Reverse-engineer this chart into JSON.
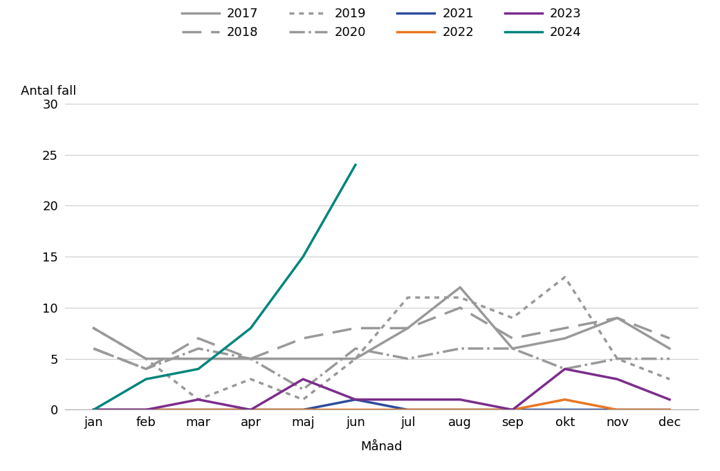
{
  "months": [
    "jan",
    "feb",
    "mar",
    "apr",
    "maj",
    "jun",
    "jul",
    "aug",
    "sep",
    "okt",
    "nov",
    "dec"
  ],
  "series": {
    "2017": {
      "values": [
        8,
        5,
        5,
        5,
        5,
        5,
        8,
        12,
        6,
        7,
        9,
        6
      ],
      "color": "#999999",
      "linestyle": "-",
      "linewidth": 2.5
    },
    "2018": {
      "values": [
        6,
        4,
        7,
        5,
        7,
        8,
        8,
        10,
        7,
        8,
        9,
        7
      ],
      "color": "#999999",
      "linestyle": "--",
      "linewidth": 2.5
    },
    "2019": {
      "values": [
        8,
        5,
        1,
        3,
        1,
        5,
        11,
        11,
        9,
        13,
        5,
        3
      ],
      "color": "#999999",
      "linestyle": ":",
      "linewidth": 2.5
    },
    "2020": {
      "values": [
        6,
        4,
        6,
        5,
        2,
        6,
        5,
        6,
        6,
        4,
        5,
        5
      ],
      "color": "#999999",
      "linestyle": "-.",
      "linewidth": 2.5
    },
    "2021": {
      "values": [
        0,
        0,
        0,
        0,
        0,
        1,
        0,
        0,
        0,
        0,
        0,
        0
      ],
      "color": "#2E4D9E",
      "linestyle": "-",
      "linewidth": 2.5
    },
    "2022": {
      "values": [
        0,
        0,
        0,
        0,
        0,
        0,
        0,
        0,
        0,
        1,
        0,
        0
      ],
      "color": "#E87722",
      "linestyle": "-",
      "linewidth": 2.5
    },
    "2023": {
      "values": [
        0,
        0,
        1,
        0,
        3,
        1,
        1,
        1,
        0,
        4,
        3,
        1
      ],
      "color": "#7B2D8B",
      "linestyle": "-",
      "linewidth": 2.5
    },
    "2024": {
      "values": [
        0,
        3,
        4,
        8,
        15,
        24,
        null,
        null,
        null,
        null,
        null,
        null
      ],
      "color": "#00857C",
      "linestyle": "-",
      "linewidth": 2.5
    }
  },
  "ylabel": "Antal fall",
  "xlabel": "Månad",
  "ylim": [
    0,
    30
  ],
  "yticks": [
    0,
    5,
    10,
    15,
    20,
    25,
    30
  ],
  "background_color": "#ffffff",
  "grid_color": "#cccccc",
  "legend_order": [
    "2017",
    "2018",
    "2019",
    "2020",
    "2021",
    "2022",
    "2023",
    "2024"
  ],
  "font_size": 13
}
